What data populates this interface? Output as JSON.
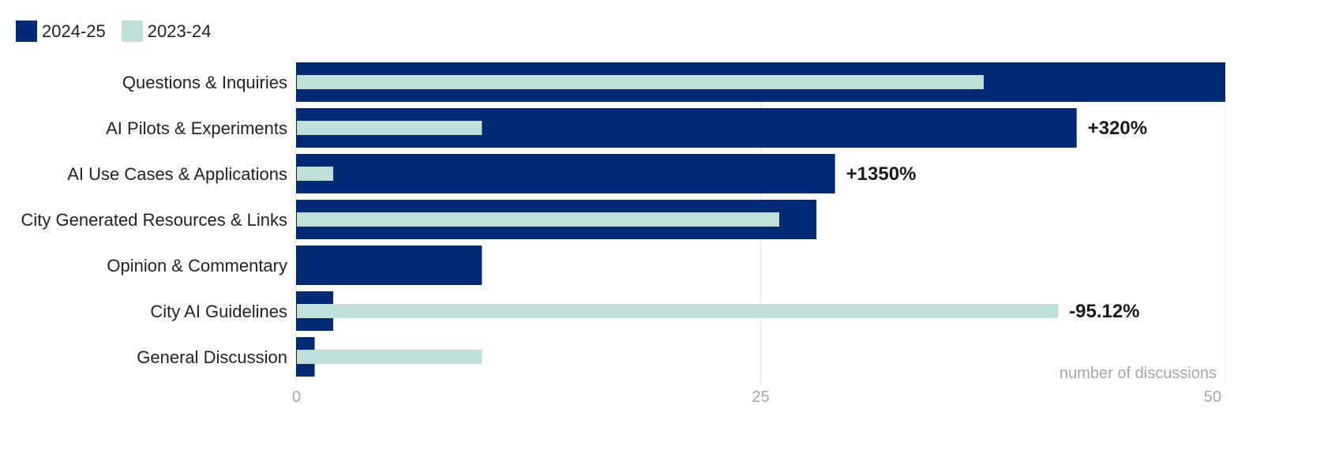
{
  "legend": {
    "items": [
      {
        "label": "2024-25",
        "color": "#002b74"
      },
      {
        "label": "2023-24",
        "color": "#bfdfd8"
      }
    ]
  },
  "chart_data": {
    "type": "bar",
    "orientation": "horizontal",
    "categories": [
      "Questions & Inquiries",
      "AI Pilots & Experiments",
      "AI Use Cases & Applications",
      "City Generated Resources & Links",
      "Opinion & Commentary",
      "City AI Guidelines",
      "General Discussion"
    ],
    "series": [
      {
        "name": "2024-25",
        "color": "#002b74",
        "values": [
          50,
          42,
          29,
          28,
          10,
          2,
          1
        ]
      },
      {
        "name": "2023-24",
        "color": "#bfdfd8",
        "values": [
          37,
          10,
          2,
          26,
          0,
          41,
          10
        ]
      }
    ],
    "annotations": [
      {
        "category": "AI Pilots & Experiments",
        "text": "+320%"
      },
      {
        "category": "AI Use Cases & Applications",
        "text": "+1350%"
      },
      {
        "category": "City AI Guidelines",
        "text": "-95.12%"
      }
    ],
    "xlabel": "number of discussions",
    "xlim": [
      0,
      50
    ],
    "xticks": [
      "0",
      "25",
      "50"
    ],
    "grid": true,
    "legend_position": "top-left"
  }
}
